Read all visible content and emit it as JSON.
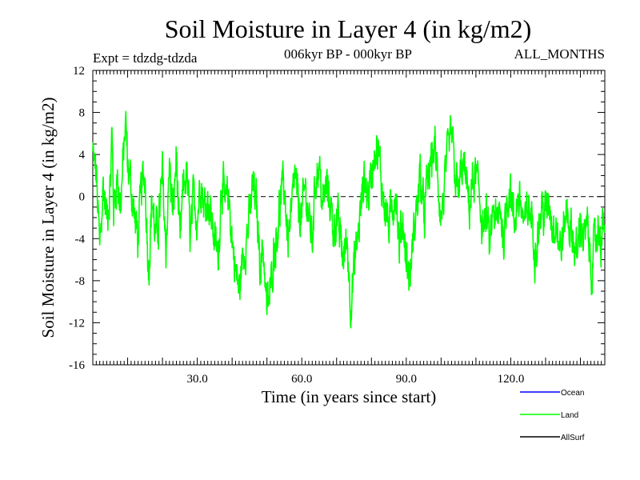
{
  "chart_data": {
    "type": "line",
    "title": "Soil Moisture in Layer 4 (in kg/m2)",
    "subtitle_left": "Expt = tdzdg-tdzda",
    "subtitle_center": "006kyr BP - 000kyr BP",
    "subtitle_right": "ALL_MONTHS",
    "xlabel": "Time (in years since start)",
    "ylabel": "Soil Moisture in Layer 4 (in kg/m2)",
    "xlim": [
      0,
      147
    ],
    "ylim": [
      -16,
      12
    ],
    "x_ticks": [
      30,
      60,
      90,
      120
    ],
    "x_tick_labels": [
      "30.0",
      "60.0",
      "90.0",
      "120.0"
    ],
    "y_ticks": [
      -16,
      -12,
      -8,
      -4,
      0,
      4,
      8,
      12
    ],
    "y_tick_labels": [
      "-16",
      "-12",
      "-8",
      "-4",
      "0",
      "4",
      "8",
      "12"
    ],
    "zero_line": 0,
    "series": [
      {
        "name": "Land",
        "color": "#00ff00",
        "x_step": 0.08333,
        "anchors": [
          [
            0,
            4
          ],
          [
            1,
            2
          ],
          [
            2,
            -5
          ],
          [
            3,
            1
          ],
          [
            4,
            -2
          ],
          [
            5,
            1
          ],
          [
            5.5,
            6
          ],
          [
            6,
            -1
          ],
          [
            7,
            2
          ],
          [
            8,
            -1
          ],
          [
            9,
            5
          ],
          [
            9.5,
            7
          ],
          [
            10,
            3
          ],
          [
            11,
            1
          ],
          [
            12,
            -2
          ],
          [
            13,
            -4
          ],
          [
            14,
            1
          ],
          [
            15,
            2
          ],
          [
            16,
            -7
          ],
          [
            17,
            0
          ],
          [
            18,
            -4
          ],
          [
            19,
            -2
          ],
          [
            20,
            2
          ],
          [
            21,
            -5
          ],
          [
            22,
            3
          ],
          [
            23,
            -2
          ],
          [
            24,
            4
          ],
          [
            25,
            -5
          ],
          [
            26,
            1
          ],
          [
            27,
            2
          ],
          [
            28,
            -4
          ],
          [
            29,
            0
          ],
          [
            30,
            -2
          ],
          [
            31,
            2
          ],
          [
            32,
            -1
          ],
          [
            33,
            0
          ],
          [
            34,
            -2
          ],
          [
            35,
            -4
          ],
          [
            36,
            -6
          ],
          [
            37,
            2
          ],
          [
            38,
            -1
          ],
          [
            39,
            0
          ],
          [
            40,
            -4
          ],
          [
            41,
            -7
          ],
          [
            42,
            -9
          ],
          [
            43,
            -6
          ],
          [
            44,
            -4
          ],
          [
            45,
            -2
          ],
          [
            46,
            1
          ],
          [
            47,
            -1
          ],
          [
            48,
            -6
          ],
          [
            49,
            -5
          ],
          [
            50,
            -11
          ],
          [
            51,
            -9
          ],
          [
            52,
            -5
          ],
          [
            53,
            -3
          ],
          [
            54,
            0
          ],
          [
            55,
            1
          ],
          [
            56,
            -4
          ],
          [
            57,
            -2
          ],
          [
            58,
            2
          ],
          [
            59,
            -1
          ],
          [
            60,
            -2
          ],
          [
            61,
            1
          ],
          [
            62,
            -2
          ],
          [
            63,
            -4
          ],
          [
            64,
            2
          ],
          [
            65,
            3
          ],
          [
            66,
            -1
          ],
          [
            67,
            1
          ],
          [
            68,
            0
          ],
          [
            69,
            -3
          ],
          [
            70,
            -2
          ],
          [
            71,
            -4
          ],
          [
            72,
            -6
          ],
          [
            73,
            -4
          ],
          [
            74,
            -10
          ],
          [
            75,
            -7
          ],
          [
            76,
            -4
          ],
          [
            77,
            -1
          ],
          [
            78,
            2
          ],
          [
            79,
            0
          ],
          [
            80,
            2
          ],
          [
            81,
            5
          ],
          [
            82,
            4
          ],
          [
            83,
            1
          ],
          [
            84,
            -1
          ],
          [
            85,
            -3
          ],
          [
            86,
            -1
          ],
          [
            87,
            1
          ],
          [
            88,
            -5
          ],
          [
            89,
            -2
          ],
          [
            90,
            -6
          ],
          [
            91,
            -8
          ],
          [
            92,
            -4
          ],
          [
            93,
            -1
          ],
          [
            94,
            2
          ],
          [
            95,
            -2
          ],
          [
            96,
            1
          ],
          [
            97,
            3
          ],
          [
            98,
            5
          ],
          [
            99,
            2
          ],
          [
            100,
            -2
          ],
          [
            101,
            1
          ],
          [
            102,
            4
          ],
          [
            103,
            6
          ],
          [
            104,
            2
          ],
          [
            105,
            0
          ],
          [
            106,
            3
          ],
          [
            107,
            2
          ],
          [
            108,
            -1
          ],
          [
            109,
            1
          ],
          [
            110,
            2
          ],
          [
            111,
            0
          ],
          [
            112,
            -3
          ],
          [
            113,
            -2
          ],
          [
            114,
            -5
          ],
          [
            115,
            -1
          ],
          [
            116,
            -3
          ],
          [
            117,
            -1
          ],
          [
            118,
            -4
          ],
          [
            119,
            0
          ],
          [
            120,
            1
          ],
          [
            121,
            -3
          ],
          [
            122,
            0
          ],
          [
            123,
            -1
          ],
          [
            124,
            -3
          ],
          [
            125,
            -1
          ],
          [
            126,
            -2
          ],
          [
            127,
            -5
          ],
          [
            128,
            -3
          ],
          [
            129,
            -1
          ],
          [
            130,
            -2
          ],
          [
            131,
            0
          ],
          [
            132,
            -3
          ],
          [
            133,
            -2
          ],
          [
            134,
            -5
          ],
          [
            135,
            -4
          ],
          [
            136,
            -1
          ],
          [
            137,
            -3
          ],
          [
            138,
            -4
          ],
          [
            139,
            -6
          ],
          [
            140,
            -2
          ],
          [
            141,
            -4
          ],
          [
            142,
            -3
          ],
          [
            143,
            -7
          ],
          [
            144,
            -5
          ],
          [
            145,
            -3
          ],
          [
            146,
            -4
          ],
          [
            147,
            -2
          ]
        ],
        "noise_amplitude": 3.2,
        "smin": -13.8,
        "smax": 8.1
      }
    ],
    "legend": [
      {
        "label": "Ocean",
        "color": "#0000ff"
      },
      {
        "label": "Land",
        "color": "#00ff00"
      },
      {
        "label": "AllSurf",
        "color": "#000000"
      }
    ],
    "legend_position": "bottom-right"
  }
}
